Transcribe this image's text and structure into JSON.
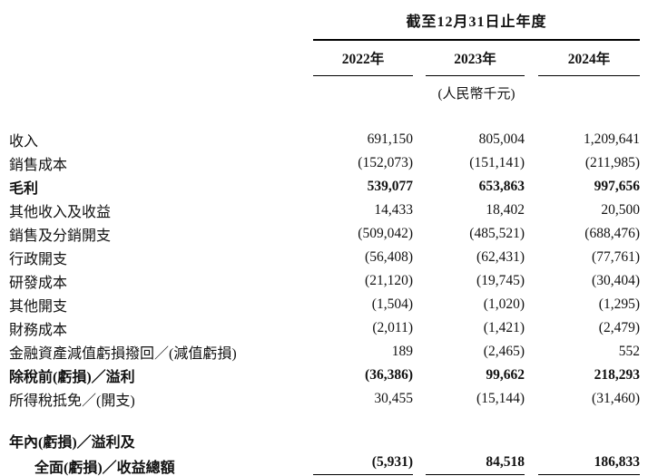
{
  "table": {
    "period_header": "截至12月31日止年度",
    "unit_note": "(人民幣千元)",
    "years": [
      "2022年",
      "2023年",
      "2024年"
    ],
    "rows": [
      {
        "label": "收入",
        "bold": false,
        "indent": false,
        "spacer_before": false,
        "double_underline": false,
        "values": [
          "691,150",
          "805,004",
          "1,209,641"
        ]
      },
      {
        "label": "銷售成本",
        "bold": false,
        "indent": false,
        "spacer_before": false,
        "double_underline": false,
        "values": [
          "(152,073)",
          "(151,141)",
          "(211,985)"
        ]
      },
      {
        "label": "毛利",
        "bold": true,
        "indent": false,
        "spacer_before": false,
        "double_underline": false,
        "values": [
          "539,077",
          "653,863",
          "997,656"
        ]
      },
      {
        "label": "其他收入及收益",
        "bold": false,
        "indent": false,
        "spacer_before": false,
        "double_underline": false,
        "values": [
          "14,433",
          "18,402",
          "20,500"
        ]
      },
      {
        "label": "銷售及分銷開支",
        "bold": false,
        "indent": false,
        "spacer_before": false,
        "double_underline": false,
        "values": [
          "(509,042)",
          "(485,521)",
          "(688,476)"
        ]
      },
      {
        "label": "行政開支",
        "bold": false,
        "indent": false,
        "spacer_before": false,
        "double_underline": false,
        "values": [
          "(56,408)",
          "(62,431)",
          "(77,761)"
        ]
      },
      {
        "label": "研發成本",
        "bold": false,
        "indent": false,
        "spacer_before": false,
        "double_underline": false,
        "values": [
          "(21,120)",
          "(19,745)",
          "(30,404)"
        ]
      },
      {
        "label": "其他開支",
        "bold": false,
        "indent": false,
        "spacer_before": false,
        "double_underline": false,
        "values": [
          "(1,504)",
          "(1,020)",
          "(1,295)"
        ]
      },
      {
        "label": "財務成本",
        "bold": false,
        "indent": false,
        "spacer_before": false,
        "double_underline": false,
        "values": [
          "(2,011)",
          "(1,421)",
          "(2,479)"
        ]
      },
      {
        "label": "金融資產減值虧損撥回／(減值虧損)",
        "bold": false,
        "indent": false,
        "spacer_before": false,
        "double_underline": false,
        "values": [
          "189",
          "(2,465)",
          "552"
        ]
      },
      {
        "label": "除稅前(虧損)／溢利",
        "bold": true,
        "indent": false,
        "spacer_before": false,
        "double_underline": false,
        "values": [
          "(36,386)",
          "99,662",
          "218,293"
        ]
      },
      {
        "label": "所得稅抵免／(開支)",
        "bold": false,
        "indent": false,
        "spacer_before": false,
        "double_underline": false,
        "values": [
          "30,455",
          "(15,144)",
          "(31,460)"
        ]
      },
      {
        "label": "年內(虧損)／溢利及",
        "bold": true,
        "indent": false,
        "spacer_before": true,
        "double_underline": false,
        "values": [
          "",
          "",
          ""
        ]
      },
      {
        "label": "全面(虧損)／收益總額",
        "bold": true,
        "indent": true,
        "spacer_before": false,
        "double_underline": true,
        "values": [
          "(5,931)",
          "84,518",
          "186,833"
        ]
      }
    ]
  }
}
